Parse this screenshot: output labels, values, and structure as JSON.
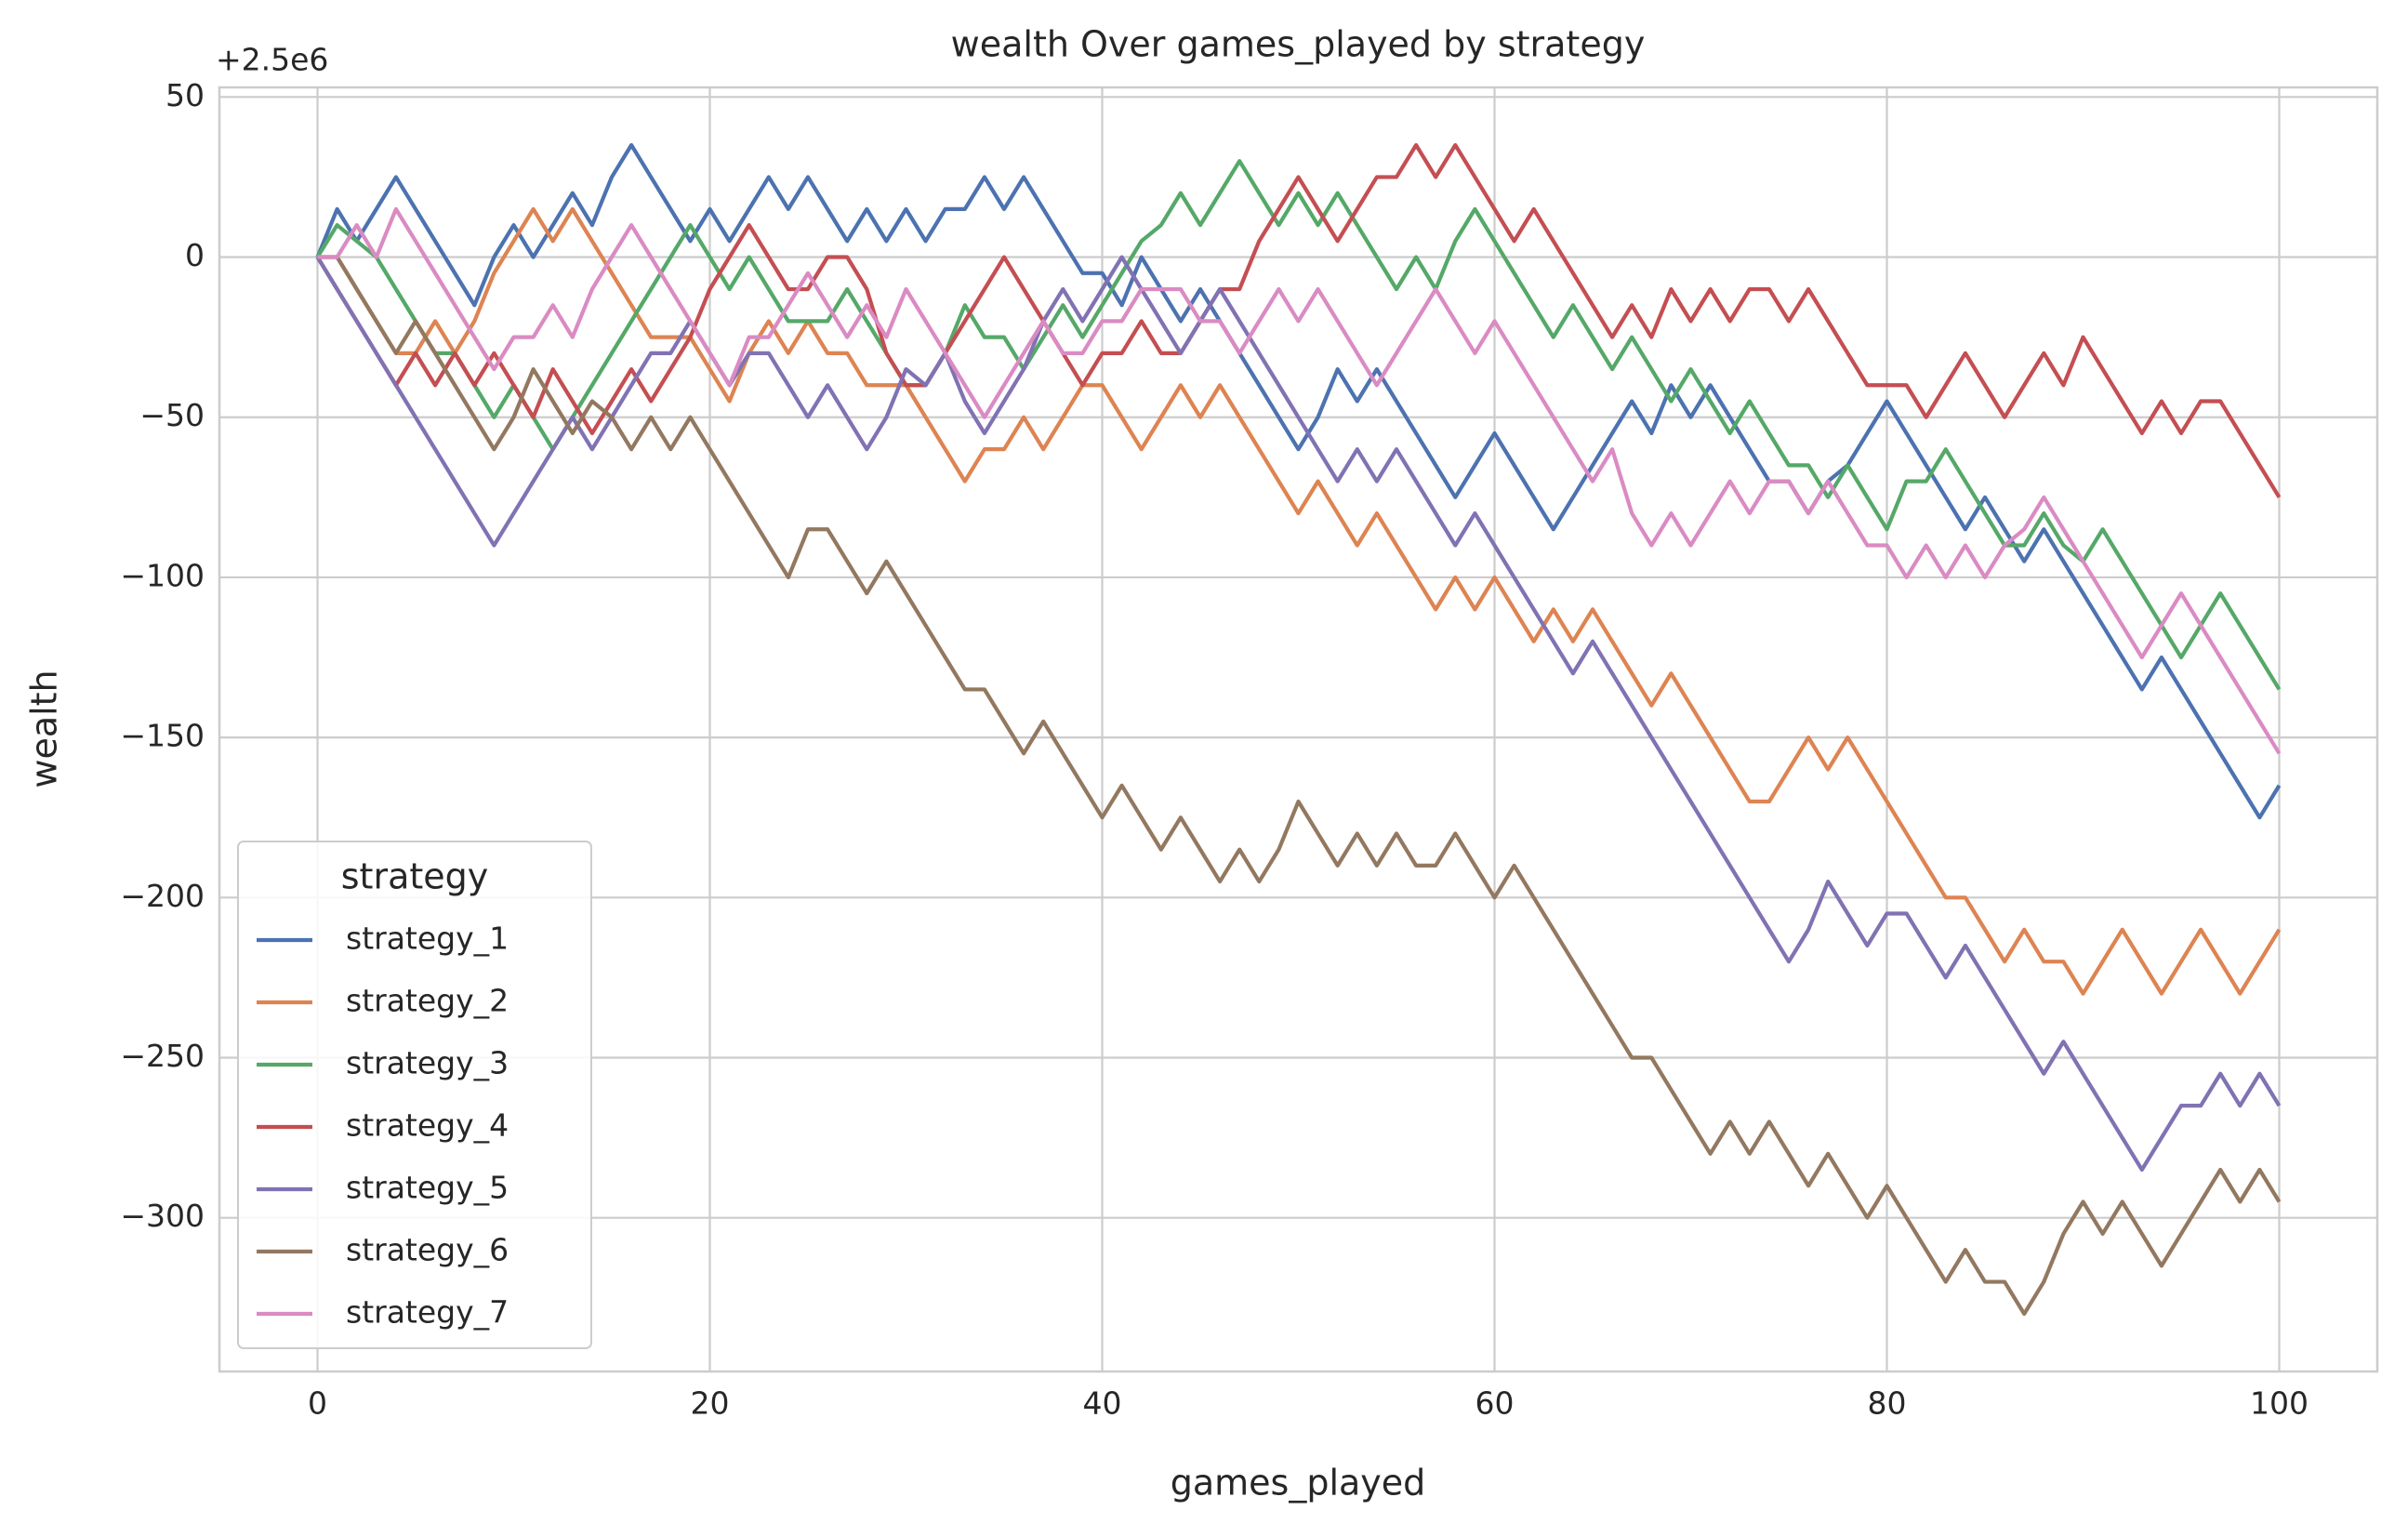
{
  "chart_data": {
    "type": "line",
    "title": "wealth Over games_played by strategy",
    "x_label": "games_played",
    "y_label": "wealth",
    "y_offset_label": "+2.5e6",
    "legend_title": "strategy",
    "legend_position": "lower left",
    "grid": true,
    "xlim": [
      -5,
      105
    ],
    "xticks": [
      0,
      20,
      40,
      60,
      80,
      100
    ],
    "ylim": [
      -348,
      53
    ],
    "yticks": [
      {
        "value": -300,
        "label": "−300"
      },
      {
        "value": -250,
        "label": "−250"
      },
      {
        "value": -200,
        "label": "−200"
      },
      {
        "value": -150,
        "label": "−150"
      },
      {
        "value": -100,
        "label": "−100"
      },
      {
        "value": -50,
        "label": "−50"
      },
      0,
      50
    ],
    "x": [
      0,
      1,
      2,
      3,
      4,
      5,
      6,
      7,
      8,
      9,
      10,
      11,
      12,
      13,
      14,
      15,
      16,
      17,
      18,
      19,
      20,
      21,
      22,
      23,
      24,
      25,
      26,
      27,
      28,
      29,
      30,
      31,
      32,
      33,
      34,
      35,
      36,
      37,
      38,
      39,
      40,
      41,
      42,
      43,
      44,
      45,
      46,
      47,
      48,
      49,
      50,
      51,
      52,
      53,
      54,
      55,
      56,
      57,
      58,
      59,
      60,
      61,
      62,
      63,
      64,
      65,
      66,
      67,
      68,
      69,
      70,
      71,
      72,
      73,
      74,
      75,
      76,
      77,
      78,
      79,
      80,
      81,
      82,
      83,
      84,
      85,
      86,
      87,
      88,
      89,
      90,
      91,
      92,
      93,
      94,
      95,
      96,
      97,
      98,
      99,
      100
    ],
    "series": [
      {
        "name": "strategy_1",
        "color": "#4c72b0",
        "values": [
          0,
          15,
          5,
          15,
          25,
          15,
          5,
          -5,
          -15,
          0,
          10,
          0,
          10,
          20,
          10,
          25,
          35,
          25,
          15,
          5,
          15,
          5,
          15,
          25,
          15,
          25,
          15,
          5,
          15,
          5,
          15,
          5,
          15,
          15,
          25,
          15,
          25,
          15,
          5,
          -5,
          -5,
          -15,
          0,
          -10,
          -20,
          -10,
          -20,
          -30,
          -40,
          -50,
          -60,
          -50,
          -35,
          -45,
          -35,
          -45,
          -55,
          -65,
          -75,
          -65,
          -55,
          -65,
          -75,
          -85,
          -75,
          -65,
          -55,
          -45,
          -55,
          -40,
          -50,
          -40,
          -50,
          -60,
          -70,
          -70,
          -80,
          -70,
          -65,
          -55,
          -45,
          -55,
          -65,
          -75,
          -85,
          -75,
          -85,
          -95,
          -85,
          -95,
          -105,
          -115,
          -125,
          -135,
          -125,
          -135,
          -145,
          -155,
          -165,
          -175,
          -165
        ]
      },
      {
        "name": "strategy_2",
        "color": "#dd8452",
        "values": [
          0,
          0,
          -10,
          -20,
          -30,
          -30,
          -20,
          -30,
          -20,
          -5,
          5,
          15,
          5,
          15,
          5,
          -5,
          -15,
          -25,
          -25,
          -25,
          -35,
          -45,
          -30,
          -20,
          -30,
          -20,
          -30,
          -30,
          -40,
          -40,
          -40,
          -50,
          -60,
          -70,
          -60,
          -60,
          -50,
          -60,
          -50,
          -40,
          -40,
          -50,
          -60,
          -50,
          -40,
          -50,
          -40,
          -50,
          -60,
          -70,
          -80,
          -70,
          -80,
          -90,
          -80,
          -90,
          -100,
          -110,
          -100,
          -110,
          -100,
          -110,
          -120,
          -110,
          -120,
          -110,
          -120,
          -130,
          -140,
          -130,
          -140,
          -150,
          -160,
          -170,
          -170,
          -160,
          -150,
          -160,
          -150,
          -160,
          -170,
          -180,
          -190,
          -200,
          -200,
          -210,
          -220,
          -210,
          -220,
          -220,
          -230,
          -220,
          -210,
          -220,
          -230,
          -220,
          -210,
          -220,
          -230,
          -220,
          -210
        ]
      },
      {
        "name": "strategy_3",
        "color": "#55a868",
        "values": [
          0,
          10,
          5,
          0,
          -10,
          -20,
          -30,
          -30,
          -40,
          -50,
          -40,
          -50,
          -60,
          -50,
          -40,
          -30,
          -20,
          -10,
          0,
          10,
          0,
          -10,
          0,
          -10,
          -20,
          -20,
          -20,
          -10,
          -20,
          -30,
          -40,
          -40,
          -30,
          -15,
          -25,
          -25,
          -35,
          -25,
          -15,
          -25,
          -15,
          -5,
          5,
          10,
          20,
          10,
          20,
          30,
          20,
          10,
          20,
          10,
          20,
          10,
          0,
          -10,
          0,
          -10,
          5,
          15,
          5,
          -5,
          -15,
          -25,
          -15,
          -25,
          -35,
          -25,
          -35,
          -45,
          -35,
          -45,
          -55,
          -45,
          -55,
          -65,
          -65,
          -75,
          -65,
          -75,
          -85,
          -70,
          -70,
          -60,
          -70,
          -80,
          -90,
          -90,
          -80,
          -90,
          -95,
          -85,
          -95,
          -105,
          -115,
          -125,
          -115,
          -105,
          -115,
          -125,
          -135
        ]
      },
      {
        "name": "strategy_4",
        "color": "#c44e52",
        "values": [
          0,
          -10,
          -20,
          -30,
          -40,
          -30,
          -40,
          -30,
          -40,
          -30,
          -40,
          -50,
          -35,
          -45,
          -55,
          -45,
          -35,
          -45,
          -35,
          -25,
          -10,
          0,
          10,
          0,
          -10,
          -10,
          0,
          0,
          -10,
          -30,
          -40,
          -40,
          -30,
          -20,
          -10,
          0,
          -10,
          -20,
          -30,
          -40,
          -30,
          -30,
          -20,
          -30,
          -30,
          -20,
          -10,
          -10,
          5,
          15,
          25,
          15,
          5,
          15,
          25,
          25,
          35,
          25,
          35,
          25,
          15,
          5,
          15,
          5,
          -5,
          -15,
          -25,
          -15,
          -25,
          -10,
          -20,
          -10,
          -20,
          -10,
          -10,
          -20,
          -10,
          -20,
          -30,
          -40,
          -40,
          -40,
          -50,
          -40,
          -30,
          -40,
          -50,
          -40,
          -30,
          -40,
          -25,
          -35,
          -45,
          -55,
          -45,
          -55,
          -45,
          -45,
          -55,
          -65,
          -75
        ]
      },
      {
        "name": "strategy_5",
        "color": "#8172b3",
        "values": [
          0,
          -10,
          -20,
          -30,
          -40,
          -50,
          -60,
          -70,
          -80,
          -90,
          -80,
          -70,
          -60,
          -50,
          -60,
          -50,
          -40,
          -30,
          -30,
          -20,
          -30,
          -40,
          -30,
          -30,
          -40,
          -50,
          -40,
          -50,
          -60,
          -50,
          -35,
          -40,
          -30,
          -45,
          -55,
          -45,
          -35,
          -20,
          -10,
          -20,
          -10,
          0,
          -10,
          -20,
          -30,
          -20,
          -10,
          -20,
          -30,
          -40,
          -50,
          -60,
          -70,
          -60,
          -70,
          -60,
          -70,
          -80,
          -90,
          -80,
          -90,
          -100,
          -110,
          -120,
          -130,
          -120,
          -130,
          -140,
          -150,
          -160,
          -170,
          -180,
          -190,
          -200,
          -210,
          -220,
          -210,
          -195,
          -205,
          -215,
          -205,
          -205,
          -215,
          -225,
          -215,
          -225,
          -235,
          -245,
          -255,
          -245,
          -255,
          -265,
          -275,
          -285,
          -275,
          -265,
          -265,
          -255,
          -265,
          -255,
          -265
        ]
      },
      {
        "name": "strategy_6",
        "color": "#937860",
        "values": [
          0,
          0,
          -10,
          -20,
          -30,
          -20,
          -30,
          -40,
          -50,
          -60,
          -50,
          -35,
          -45,
          -55,
          -45,
          -50,
          -60,
          -50,
          -60,
          -50,
          -60,
          -70,
          -80,
          -90,
          -100,
          -85,
          -85,
          -95,
          -105,
          -95,
          -105,
          -115,
          -125,
          -135,
          -135,
          -145,
          -155,
          -145,
          -155,
          -165,
          -175,
          -165,
          -175,
          -185,
          -175,
          -185,
          -195,
          -185,
          -195,
          -185,
          -170,
          -180,
          -190,
          -180,
          -190,
          -180,
          -190,
          -190,
          -180,
          -190,
          -200,
          -190,
          -200,
          -210,
          -220,
          -230,
          -240,
          -250,
          -250,
          -260,
          -270,
          -280,
          -270,
          -280,
          -270,
          -280,
          -290,
          -280,
          -290,
          -300,
          -290,
          -300,
          -310,
          -320,
          -310,
          -320,
          -320,
          -330,
          -320,
          -305,
          -295,
          -305,
          -295,
          -305,
          -315,
          -305,
          -295,
          -285,
          -295,
          -285,
          -295
        ]
      },
      {
        "name": "strategy_7",
        "color": "#da8bc3",
        "values": [
          0,
          0,
          10,
          0,
          15,
          5,
          -5,
          -15,
          -25,
          -35,
          -25,
          -25,
          -15,
          -25,
          -10,
          0,
          10,
          0,
          -10,
          -20,
          -30,
          -40,
          -25,
          -25,
          -15,
          -5,
          -15,
          -25,
          -15,
          -25,
          -10,
          -20,
          -30,
          -40,
          -50,
          -40,
          -30,
          -20,
          -30,
          -30,
          -20,
          -20,
          -10,
          -10,
          -10,
          -20,
          -20,
          -30,
          -20,
          -10,
          -20,
          -10,
          -20,
          -30,
          -40,
          -30,
          -20,
          -10,
          -20,
          -30,
          -20,
          -30,
          -40,
          -50,
          -60,
          -70,
          -60,
          -80,
          -90,
          -80,
          -90,
          -80,
          -70,
          -80,
          -70,
          -70,
          -80,
          -70,
          -80,
          -90,
          -90,
          -100,
          -90,
          -100,
          -90,
          -100,
          -90,
          -85,
          -75,
          -85,
          -95,
          -105,
          -115,
          -125,
          -115,
          -105,
          -115,
          -125,
          -135,
          -145,
          -155
        ]
      }
    ]
  }
}
